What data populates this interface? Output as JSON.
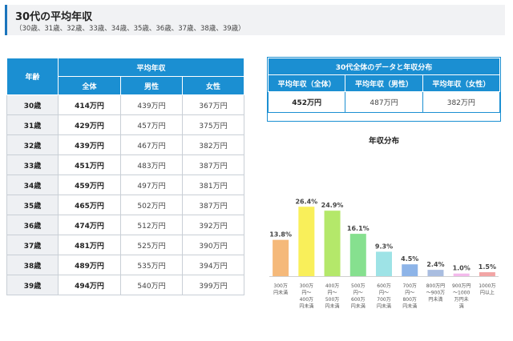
{
  "header": {
    "title": "30代の平均年収",
    "subtitle": "（30歳、31歳、32歳、33歳、34歳、35歳、36歳、37歳、38歳、39歳）"
  },
  "table": {
    "age_header": "年齢",
    "group_header": "平均年収",
    "col_all": "全体",
    "col_male": "男性",
    "col_female": "女性",
    "rows": [
      {
        "age": "30歳",
        "all": "414万円",
        "male": "439万円",
        "female": "367万円"
      },
      {
        "age": "31歳",
        "all": "429万円",
        "male": "457万円",
        "female": "375万円"
      },
      {
        "age": "32歳",
        "all": "439万円",
        "male": "467万円",
        "female": "382万円"
      },
      {
        "age": "33歳",
        "all": "451万円",
        "male": "483万円",
        "female": "387万円"
      },
      {
        "age": "34歳",
        "all": "459万円",
        "male": "497万円",
        "female": "381万円"
      },
      {
        "age": "35歳",
        "all": "465万円",
        "male": "502万円",
        "female": "387万円"
      },
      {
        "age": "36歳",
        "all": "474万円",
        "male": "512万円",
        "female": "392万円"
      },
      {
        "age": "37歳",
        "all": "481万円",
        "male": "525万円",
        "female": "390万円"
      },
      {
        "age": "38歳",
        "all": "489万円",
        "male": "535万円",
        "female": "394万円"
      },
      {
        "age": "39歳",
        "all": "494万円",
        "male": "540万円",
        "female": "399万円"
      }
    ]
  },
  "summary": {
    "title": "30代全体のデータと年収分布",
    "headers": [
      "平均年収（全体）",
      "平均年収（男性）",
      "平均年収（女性）"
    ],
    "values": [
      "452万円",
      "487万円",
      "382万円"
    ]
  },
  "chart_data": {
    "type": "bar",
    "title": "年収分布",
    "categories": [
      [
        "300万",
        "円未満"
      ],
      [
        "300万",
        "円～",
        "400万",
        "円未満"
      ],
      [
        "400万",
        "円～",
        "500万",
        "円未満"
      ],
      [
        "500万",
        "円～",
        "600万",
        "円未満"
      ],
      [
        "600万",
        "円～",
        "700万",
        "円未満"
      ],
      [
        "700万",
        "円～",
        "800万",
        "円未満"
      ],
      [
        "800万円",
        "～900万",
        "円未満"
      ],
      [
        "900万円",
        "～1000",
        "万円未",
        "満"
      ],
      [
        "1000万",
        "円以上"
      ]
    ],
    "values": [
      13.8,
      26.4,
      24.9,
      16.1,
      9.3,
      4.5,
      2.4,
      1.0,
      1.5
    ],
    "value_labels": [
      "13.8%",
      "26.4%",
      "24.9%",
      "16.1%",
      "9.3%",
      "4.5%",
      "2.4%",
      "1.0%",
      "1.5%"
    ],
    "colors": [
      "#f5b97a",
      "#f9ef5a",
      "#b4e86a",
      "#86e08f",
      "#9ee3e6",
      "#8db4e8",
      "#a9bde0",
      "#f3b9ec",
      "#f2a5a5"
    ],
    "grid": false
  }
}
